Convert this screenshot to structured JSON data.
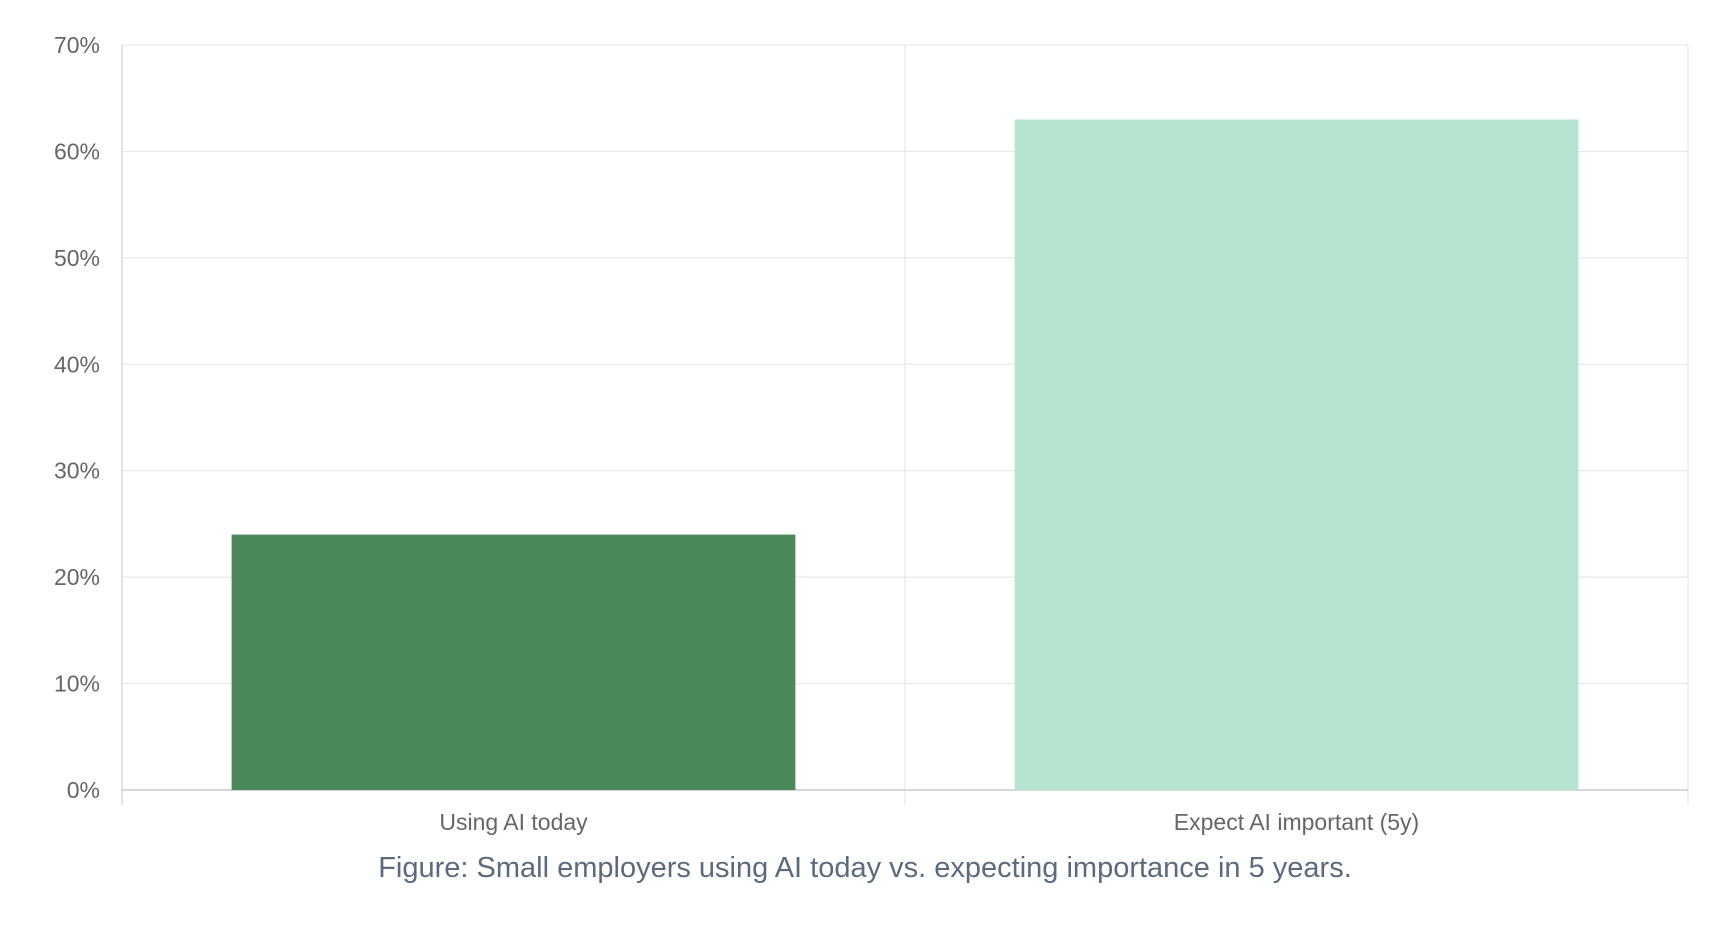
{
  "chart_data": {
    "type": "bar",
    "categories": [
      "Using AI today",
      "Expect AI important (5y)"
    ],
    "values": [
      24,
      63
    ],
    "bar_colors": [
      "#4b895c",
      "#b5e4d1"
    ],
    "ylim": [
      0,
      70
    ],
    "yticks": [
      0,
      10,
      20,
      30,
      40,
      50,
      60,
      70
    ],
    "ytick_labels": [
      "0%",
      "10%",
      "20%",
      "30%",
      "40%",
      "50%",
      "60%",
      "70%"
    ],
    "grid": true,
    "legend": "none"
  },
  "caption": "Figure: Small employers using AI today vs. expecting importance in 5 years.",
  "colors": {
    "grid": "#e3e3e3",
    "axis": "#c8c8c8",
    "tick_text": "#666666",
    "caption_text": "#5b6b7d"
  }
}
